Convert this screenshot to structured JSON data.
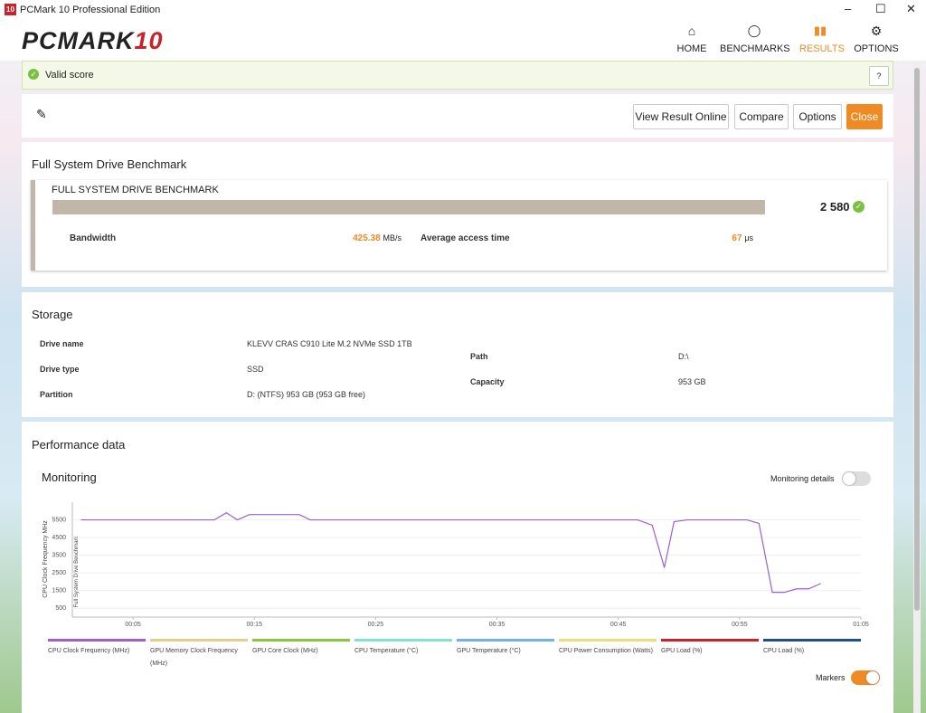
{
  "window": {
    "icon": "10",
    "title": "PCMark 10 Professional Edition"
  },
  "header": {
    "logo": "PCMARK",
    "logo_num": "10",
    "nav": [
      "HOME",
      "BENCHMARKS",
      "RESULTS",
      "OPTIONS"
    ],
    "active_nav": 2
  },
  "banner": {
    "text": "Valid score",
    "help": "?"
  },
  "actions": [
    "View Result Online",
    "Compare",
    "Options",
    "Close"
  ],
  "benchmark": {
    "section_title": "Full System Drive Benchmark",
    "name": "FULL SYSTEM DRIVE BENCHMARK",
    "score": "2 580",
    "metrics": [
      {
        "label": "Bandwidth",
        "value": "425.38",
        "unit": "MB/s"
      },
      {
        "label": "Average access time",
        "value": "67",
        "unit": "μs"
      }
    ]
  },
  "storage": {
    "title": "Storage",
    "left": [
      [
        "Drive name",
        "KLEVV CRAS C910 Lite M.2 NVMe SSD 1TB"
      ],
      [
        "Drive type",
        "SSD"
      ],
      [
        "Partition",
        "D: (NTFS) 953 GB (953 GB free)"
      ]
    ],
    "right": [
      [
        "Path",
        "D:\\"
      ],
      [
        "Capacity",
        "953 GB"
      ]
    ]
  },
  "performance": {
    "title": "Performance data",
    "monitoring": "Monitoring",
    "details_toggle": "Monitoring details",
    "markers_toggle": "Markers",
    "chart_data": {
      "type": "line",
      "ylabel": "CPU Clock Frequency MHz",
      "marker_label": "Full System Drive Benchmark",
      "x": [
        0.7,
        11.7,
        12.7,
        13.6,
        14.6,
        18.7,
        19.6,
        46.6,
        47.8,
        48.8,
        49.6,
        50.7,
        55.6,
        56.6,
        57.7,
        58.7,
        59.7,
        60.7,
        61.7
      ],
      "xlim": [
        0,
        65
      ],
      "xticks": [
        {
          "value": 5,
          "label": "00:05"
        },
        {
          "value": 15,
          "label": "00:15"
        },
        {
          "value": 25,
          "label": "00:25"
        },
        {
          "value": 35,
          "label": "00:35"
        },
        {
          "value": 45,
          "label": "00:45"
        },
        {
          "value": 55,
          "label": "00:55"
        },
        {
          "value": 65,
          "label": "01:05"
        }
      ],
      "ylim": [
        0,
        6500
      ],
      "yticks": [
        500,
        1500,
        2500,
        3500,
        4500,
        5500
      ],
      "grid": true,
      "series": [
        {
          "name": "CPU Clock Frequency (MHz)",
          "color": "#9b5fcf",
          "values": [
            5500,
            5500,
            5900,
            5500,
            5800,
            5800,
            5500,
            5500,
            5200,
            2800,
            5400,
            5500,
            5500,
            5300,
            1400,
            1400,
            1600,
            1600,
            1900
          ]
        },
        {
          "name": "GPU Memory Clock Frequency (MHz)",
          "color": "#e2cf8a"
        },
        {
          "name": "GPU Core Clock (MHz)",
          "color": "#8cc63f"
        },
        {
          "name": "CPU Temperature (°C)",
          "color": "#7fe3cf"
        },
        {
          "name": "GPU Temperature (°C)",
          "color": "#6fb3e8"
        },
        {
          "name": "CPU Power Consumption (Watts)",
          "color": "#e6e07a"
        },
        {
          "name": "GPU Load (%)",
          "color": "#c8232c"
        },
        {
          "name": "CPU Load (%)",
          "color": "#1f4e8c"
        }
      ]
    }
  }
}
